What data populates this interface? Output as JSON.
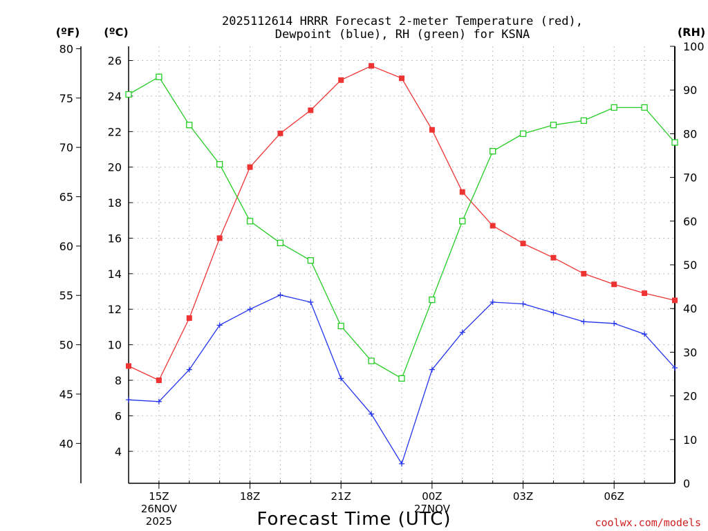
{
  "chart_data": {
    "type": "line",
    "title_line1": "2025112614 HRRR Forecast 2-meter Temperature (red),",
    "title_line2": "Dewpoint (blue), RH (green) for KSNA",
    "unit_left_f": "(ºF)",
    "unit_left_c": "(ºC)",
    "unit_right": "(RH)",
    "xlabel": "Forecast Time (UTC)",
    "credit": "coolwx.com/models",
    "x_hours": [
      14,
      15,
      16,
      17,
      18,
      19,
      20,
      21,
      22,
      23,
      24,
      25,
      26,
      27,
      28,
      29,
      30,
      31,
      32
    ],
    "xlim": [
      14,
      32
    ],
    "x_ticks": [
      {
        "h": 15,
        "lines": [
          "15Z",
          "26NOV",
          "2025"
        ]
      },
      {
        "h": 18,
        "lines": [
          "18Z"
        ]
      },
      {
        "h": 21,
        "lines": [
          "21Z"
        ]
      },
      {
        "h": 24,
        "lines": [
          "00Z",
          "27NOV"
        ]
      },
      {
        "h": 27,
        "lines": [
          "03Z"
        ]
      },
      {
        "h": 30,
        "lines": [
          "06Z"
        ]
      }
    ],
    "c_axis": {
      "ylim": [
        2.2,
        26.8
      ],
      "ticks": [
        "4",
        "6",
        "8",
        "10",
        "12",
        "14",
        "16",
        "18",
        "20",
        "22",
        "24",
        "26"
      ]
    },
    "f_axis": {
      "ticks": [
        "40",
        "45",
        "50",
        "55",
        "60",
        "65",
        "70",
        "75",
        "80"
      ]
    },
    "rh_axis": {
      "ylim": [
        0,
        100
      ],
      "ticks": [
        "0",
        "10",
        "20",
        "30",
        "40",
        "50",
        "60",
        "70",
        "80",
        "90",
        "100"
      ]
    },
    "series": [
      {
        "name": "Temperature",
        "unit": "C",
        "color": "#ee3333",
        "values": [
          8.8,
          8.0,
          11.5,
          16.0,
          20.0,
          21.9,
          23.2,
          24.9,
          25.7,
          25.0,
          22.1,
          18.6,
          16.7,
          15.7,
          14.9,
          14.0,
          13.4,
          12.9,
          12.5
        ]
      },
      {
        "name": "Dewpoint",
        "unit": "C",
        "color": "#2233ee",
        "values": [
          6.9,
          6.8,
          8.6,
          11.1,
          12.0,
          12.8,
          12.4,
          8.1,
          6.1,
          3.3,
          8.6,
          10.7,
          12.4,
          12.3,
          11.8,
          11.3,
          11.2,
          10.6,
          8.7
        ]
      },
      {
        "name": "RH",
        "unit": "%",
        "color": "#22cc22",
        "values": [
          89,
          93,
          82,
          73,
          60,
          55,
          51,
          36,
          28,
          24,
          42,
          60,
          76,
          80,
          82,
          83,
          86,
          86,
          78
        ]
      }
    ]
  }
}
